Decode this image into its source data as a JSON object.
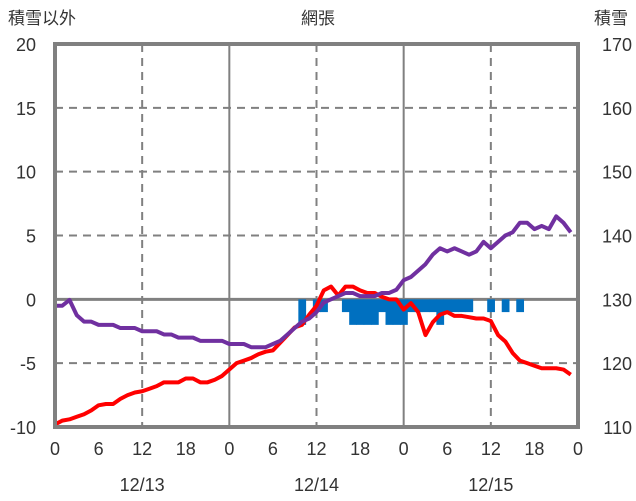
{
  "chart_data": {
    "type": "line",
    "title": "網張",
    "left_axis_label": "積雪以外",
    "right_axis_label": "積雪",
    "left_ylim": [
      -10,
      20
    ],
    "right_ylim": [
      110,
      170
    ],
    "left_ticks": [
      "20",
      "15",
      "10",
      "5",
      "0",
      "-5",
      "-10"
    ],
    "right_ticks": [
      "170",
      "160",
      "150",
      "140",
      "130",
      "120",
      "110"
    ],
    "x_tick_labels": [
      "0",
      "6",
      "12",
      "18",
      "0",
      "6",
      "12",
      "18",
      "0",
      "6",
      "12",
      "18",
      "0"
    ],
    "date_labels": [
      "12/13",
      "12/14",
      "12/15"
    ],
    "x_range_hours": [
      0,
      72
    ],
    "grid": true,
    "colors": {
      "snow_depth": "#7030A0",
      "other": "#FF0000",
      "bars": "#0070C0"
    },
    "series": [
      {
        "name": "積雪",
        "axis": "right",
        "color": "#7030A0",
        "values": [
          129,
          129,
          129.9,
          127.5,
          126.5,
          126.5,
          126,
          126,
          126,
          125.5,
          125.5,
          125.5,
          125,
          125,
          125,
          124.5,
          124.5,
          124,
          124,
          124,
          123.5,
          123.5,
          123.5,
          123.5,
          123,
          123,
          123,
          122.5,
          122.5,
          122.5,
          123,
          123.5,
          124.5,
          125.5,
          126.5,
          127,
          128,
          129.5,
          130,
          130.5,
          131,
          131,
          130.5,
          130.5,
          130.5,
          131,
          131,
          131.5,
          133,
          133.5,
          134.5,
          135.5,
          137,
          138,
          137.5,
          138,
          137.5,
          137,
          137.5,
          139,
          138,
          139,
          140,
          140.5,
          142,
          142,
          141,
          141.5,
          141,
          143,
          142,
          140.5
        ]
      },
      {
        "name": "積雪以外",
        "axis": "left",
        "color": "#FF0000",
        "values": [
          -9.8,
          -9.5,
          -9.4,
          -9.2,
          -9,
          -8.7,
          -8.3,
          -8.2,
          -8.2,
          -7.8,
          -7.5,
          -7.3,
          -7.2,
          -7,
          -6.8,
          -6.5,
          -6.5,
          -6.5,
          -6.2,
          -6.2,
          -6.5,
          -6.5,
          -6.3,
          -6,
          -5.5,
          -5,
          -4.8,
          -4.6,
          -4.3,
          -4.1,
          -4,
          -3.4,
          -2.8,
          -2.2,
          -2,
          -1.2,
          -0.5,
          0.7,
          1,
          0.3,
          1,
          1,
          0.7,
          0.5,
          0.5,
          0.2,
          0,
          0,
          -0.8,
          -0.3,
          -1,
          -2.8,
          -1.8,
          -1.2,
          -1,
          -1.3,
          -1.3,
          -1.4,
          -1.5,
          -1.5,
          -1.7,
          -2.8,
          -3.3,
          -4.2,
          -4.8,
          -5,
          -5.2,
          -5.4,
          -5.4,
          -5.4,
          -5.5,
          -5.9
        ]
      },
      {
        "name": "網張",
        "axis": "left",
        "type": "bar",
        "color": "#0070C0",
        "hours": [
          34,
          36,
          37,
          40,
          41,
          42,
          43,
          44,
          45,
          46,
          47,
          48,
          49,
          50,
          51,
          52,
          53,
          54,
          55,
          56,
          57,
          60,
          62,
          64
        ],
        "values": [
          -2,
          -1,
          -1,
          -1,
          -2,
          -2,
          -2,
          -2,
          -1,
          -2,
          -2,
          -2,
          -1,
          -1,
          -1,
          -1,
          -2,
          -1,
          -1,
          -1,
          -1,
          -1,
          -1,
          -1
        ]
      }
    ]
  }
}
